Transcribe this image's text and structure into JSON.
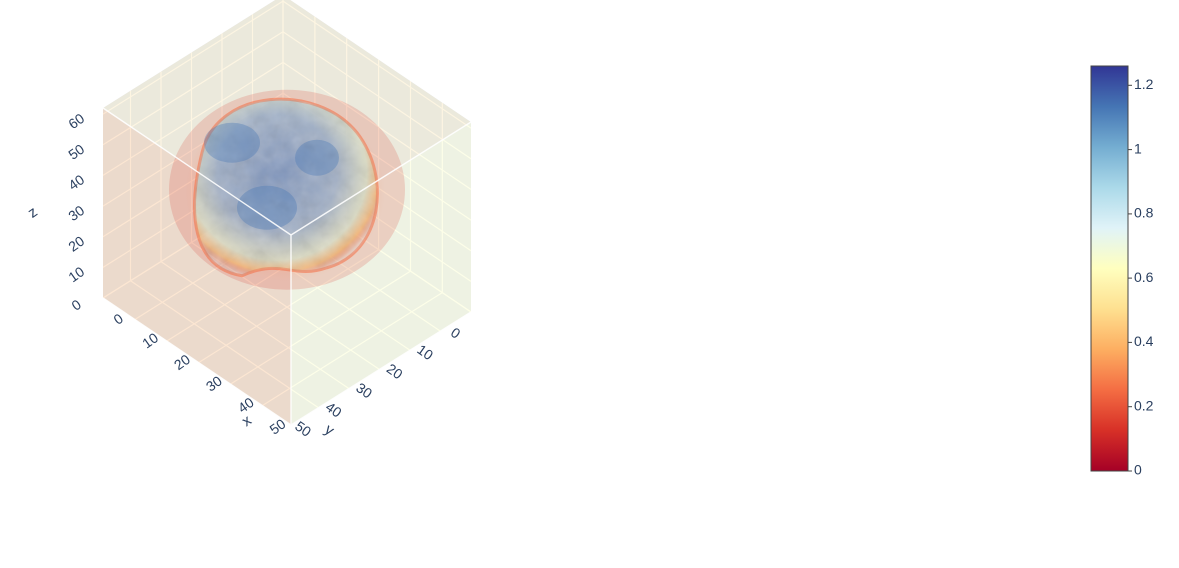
{
  "chart_data": {
    "type": "volume",
    "title": "",
    "axes": {
      "x": {
        "title": "x",
        "ticks": [
          "0",
          "10",
          "20",
          "30",
          "40",
          "50"
        ],
        "range": [
          0,
          59
        ]
      },
      "y": {
        "title": "y",
        "ticks": [
          "0",
          "10",
          "20",
          "30",
          "40",
          "50"
        ],
        "range": [
          0,
          59
        ]
      },
      "z": {
        "title": "z",
        "ticks": [
          "0",
          "10",
          "20",
          "30",
          "40",
          "50",
          "60"
        ],
        "range": [
          0,
          62
        ]
      }
    },
    "colorscale": {
      "name": "RdYlBu",
      "colors": [
        "#a50026",
        "#d73027",
        "#f46d43",
        "#fdae61",
        "#fee090",
        "#ffffbf",
        "#e0f3f8",
        "#abd9e9",
        "#74add1",
        "#4575b4",
        "#313695"
      ]
    },
    "colorbar": {
      "ticks": [
        "0",
        "0.2",
        "0.4",
        "0.6",
        "0.8",
        "1",
        "1.2"
      ],
      "range": [
        0,
        1.26
      ]
    },
    "grid": true,
    "scene_background": "#e5ecf6"
  }
}
